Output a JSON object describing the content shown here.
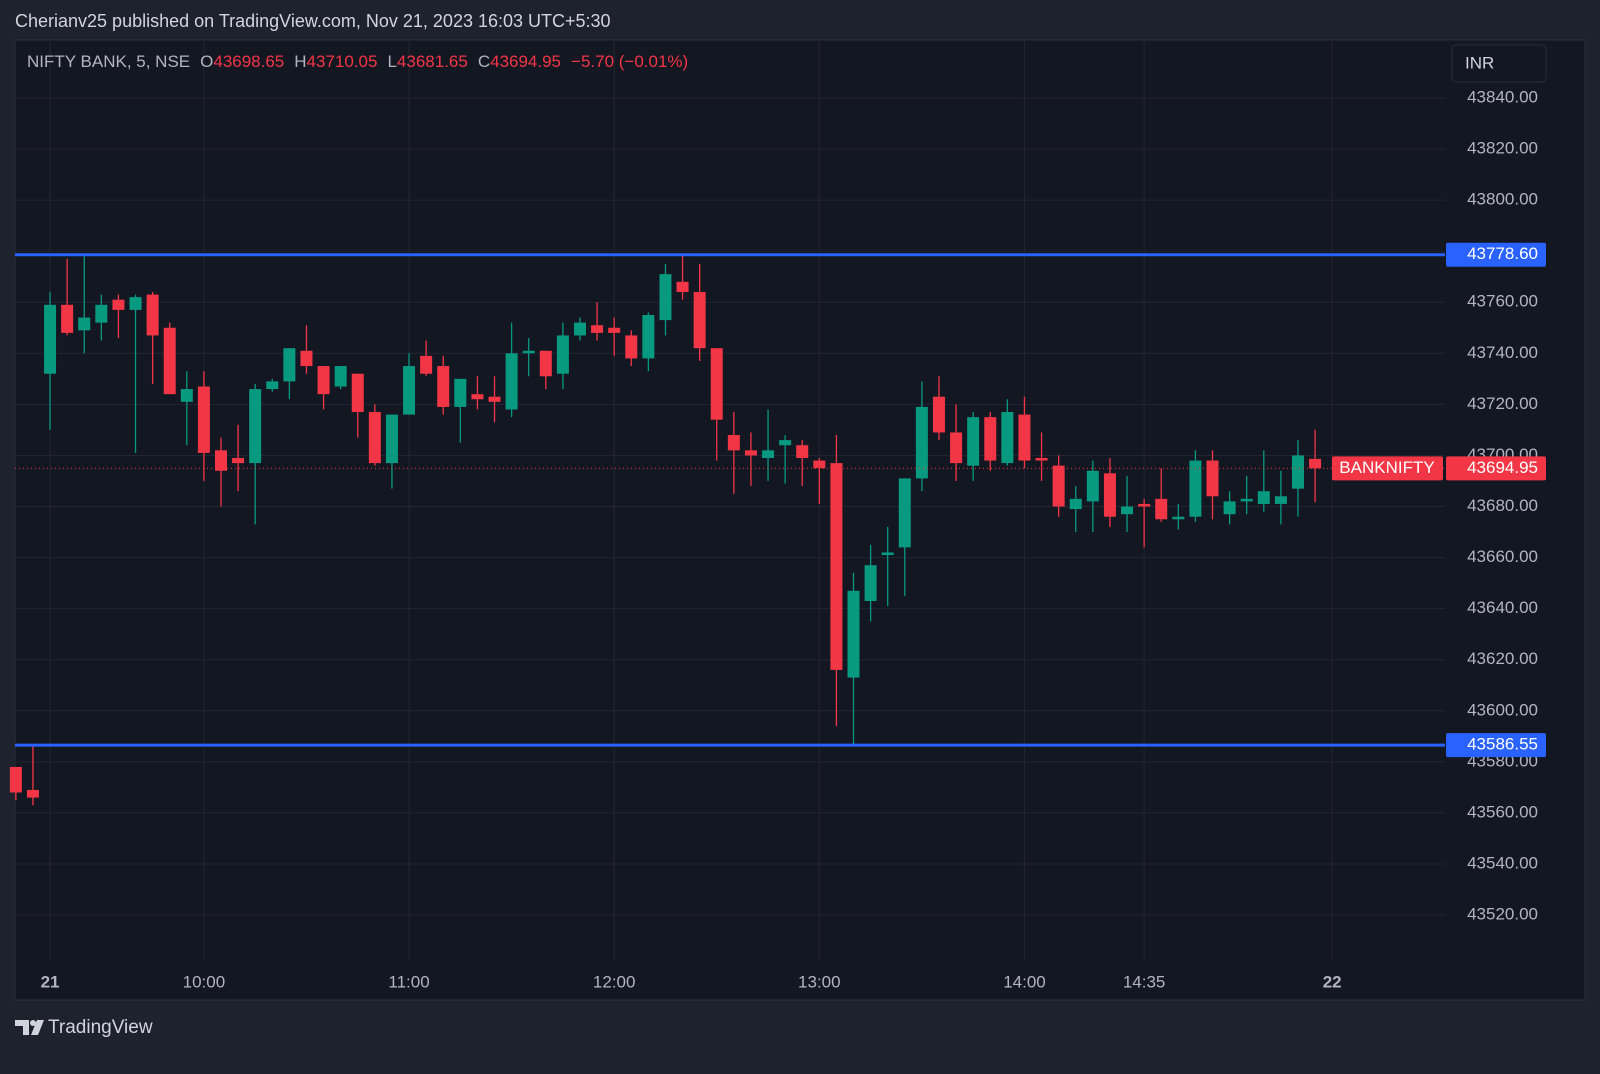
{
  "header": {
    "publisher": "Cherianv25 published on TradingView.com, Nov 21, 2023 16:03 UTC+5:30"
  },
  "chart_data": {
    "type": "candlestick",
    "title": "NIFTY BANK, 5, NSE",
    "ohlc_labels": [
      "O",
      "H",
      "L",
      "C"
    ],
    "change": "−5.70 (−0.01%)",
    "currency": "INR",
    "open": [
      43578,
      43569,
      43732,
      43759,
      43749,
      43752,
      43761,
      43757,
      43763,
      43750,
      43721,
      43727,
      43702,
      43699,
      43697,
      43726,
      43729,
      43741,
      43735,
      43727,
      43732,
      43717,
      43697,
      43716,
      43739,
      43735,
      43719,
      43724,
      43723,
      43718,
      43740,
      43741,
      43732,
      43747,
      43751,
      43750,
      43747,
      43738,
      43753,
      43768,
      43764,
      43742,
      43708,
      43702,
      43699,
      43704,
      43704,
      43698,
      43697,
      43613,
      43643,
      43661,
      43664,
      43691,
      43723,
      43709,
      43696,
      43715,
      43697,
      43716,
      43699,
      43696,
      43679,
      43682,
      43693,
      43677,
      43681,
      43683,
      43675,
      43676,
      43698,
      43677,
      43682,
      43681,
      43681,
      43687,
      43698.65
    ],
    "high": [
      43578,
      43587,
      43764,
      43777,
      43778,
      43763,
      43763,
      43763,
      43764,
      43752,
      43733,
      43733,
      43707,
      43712,
      43728,
      43730,
      43742,
      43751,
      43735,
      43735,
      43732,
      43720,
      43716,
      43740,
      43745,
      43739,
      43730,
      43731,
      43731,
      43752,
      43746,
      43741,
      43752,
      43754,
      43760,
      43754,
      43749,
      43756,
      43775,
      43778.6,
      43775,
      43742,
      43717,
      43709,
      43718,
      43708,
      43706,
      43699,
      43708,
      43654,
      43665,
      43672,
      43691,
      43729,
      43731,
      43720,
      43717,
      43717,
      43722,
      43723,
      43709,
      43700,
      43688,
      43698,
      43699,
      43692,
      43683,
      43695,
      43681,
      43702,
      43702,
      43686,
      43692,
      43702,
      43694,
      43706,
      43710.05
    ],
    "low": [
      43565,
      43563,
      43710,
      43747,
      43740,
      43745,
      43746,
      43701,
      43728,
      43724,
      43704,
      43690,
      43680,
      43686,
      43673,
      43725,
      43722,
      43732,
      43718,
      43726,
      43707,
      43696,
      43687,
      43716,
      43731,
      43716,
      43705,
      43718,
      43713,
      43715,
      43731,
      43726,
      43726,
      43745,
      43745,
      43739,
      43735,
      43733,
      43747,
      43761,
      43737,
      43698,
      43685,
      43688,
      43690,
      43689,
      43688,
      43681,
      43594,
      43586.55,
      43635,
      43641,
      43645,
      43686,
      43706,
      43690,
      43690,
      43694,
      43696,
      43695,
      43690,
      43676,
      43670,
      43670,
      43672,
      43670,
      43664,
      43674,
      43671,
      43674,
      43675,
      43673,
      43677,
      43678,
      43673,
      43676,
      43681.65
    ],
    "close": [
      43568,
      43566,
      43759,
      43748,
      43754,
      43759,
      43757,
      43762,
      43747,
      43724,
      43726,
      43701,
      43694,
      43697,
      43726,
      43729,
      43742,
      43735,
      43724,
      43735,
      43717,
      43697,
      43716,
      43735,
      43732,
      43719,
      43730,
      43722,
      43721,
      43740,
      43741,
      43731,
      43747,
      43752,
      43748,
      43748,
      43738,
      43755,
      43771,
      43764,
      43742,
      43714,
      43702,
      43700,
      43702,
      43706,
      43699,
      43695,
      43616,
      43647,
      43657,
      43662,
      43691,
      43719,
      43709,
      43697,
      43715,
      43698,
      43717,
      43698,
      43698,
      43680,
      43683,
      43694,
      43676,
      43680,
      43680,
      43675,
      43676,
      43698,
      43684,
      43682,
      43683,
      43686,
      43684,
      43700,
      43694.95
    ],
    "up_color": "#089981",
    "down_color": "#f23645",
    "xlim": [
      -0.05,
      83.6
    ],
    "xticks": [
      {
        "value": 2,
        "label": "21"
      },
      {
        "value": 11,
        "label": "10:00"
      },
      {
        "value": 23,
        "label": "11:00"
      },
      {
        "value": 35,
        "label": "12:00"
      },
      {
        "value": 47,
        "label": "13:00"
      },
      {
        "value": 59,
        "label": "14:00"
      },
      {
        "value": 66,
        "label": "14:35"
      },
      {
        "value": 77,
        "label": "22"
      }
    ],
    "ylim": [
      43502.4,
      43862.7
    ],
    "yticks": [
      {
        "value": 43520,
        "label": "43520.00"
      },
      {
        "value": 43540,
        "label": "43540.00"
      },
      {
        "value": 43560,
        "label": "43560.00"
      },
      {
        "value": 43580,
        "label": "43580.00"
      },
      {
        "value": 43600,
        "label": "43600.00"
      },
      {
        "value": 43620,
        "label": "43620.00"
      },
      {
        "value": 43640,
        "label": "43640.00"
      },
      {
        "value": 43660,
        "label": "43660.00"
      },
      {
        "value": 43680,
        "label": "43680.00"
      },
      {
        "value": 43700,
        "label": "43700.00"
      },
      {
        "value": 43720,
        "label": "43720.00"
      },
      {
        "value": 43740,
        "label": "43740.00"
      },
      {
        "value": 43760,
        "label": "43760.00"
      },
      {
        "value": 43780,
        "label": "43780.00"
      },
      {
        "value": 43800,
        "label": "43800.00"
      },
      {
        "value": 43820,
        "label": "43820.00"
      },
      {
        "value": 43840,
        "label": "43840.00"
      }
    ],
    "grid": true,
    "levels": [
      {
        "value": 43778.6,
        "label": "43778.60",
        "color": "#2962ff"
      },
      {
        "value": 43586.55,
        "label": "43586.55",
        "color": "#2962ff"
      }
    ],
    "price_line": {
      "name": "BANKNIFTY"
    }
  },
  "footer": {
    "brand": "TradingView"
  }
}
